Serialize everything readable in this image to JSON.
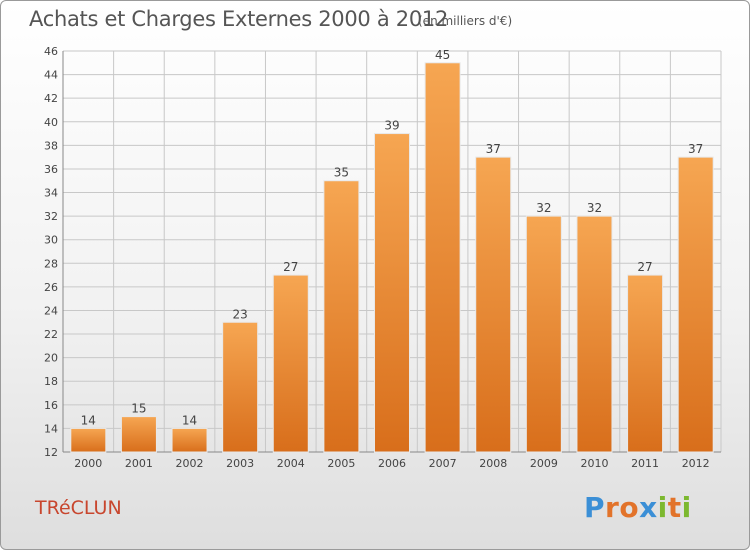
{
  "chart_data": {
    "type": "bar",
    "title": "Achats et Charges Externes 2000 à 2012",
    "subtitle": "(en milliers d'€)",
    "xlabel": "",
    "ylabel": "",
    "categories": [
      "2000",
      "2001",
      "2002",
      "2003",
      "2004",
      "2005",
      "2006",
      "2007",
      "2008",
      "2009",
      "2010",
      "2011",
      "2012"
    ],
    "values": [
      14,
      15,
      14,
      23,
      27,
      35,
      39,
      45,
      37,
      32,
      32,
      27,
      37
    ],
    "ylim": [
      12,
      46
    ],
    "yticks": [
      12,
      14,
      16,
      18,
      20,
      22,
      24,
      26,
      28,
      30,
      32,
      34,
      36,
      38,
      40,
      42,
      44,
      46
    ],
    "grid": true,
    "legend": "none",
    "colors": {
      "bar_light": "#f6a652",
      "bar_dark": "#d86e1b",
      "grid": "#c8c8c8",
      "text": "#444444"
    }
  },
  "footer": {
    "city": "TRéCLUN",
    "brand_letters": [
      {
        "ch": "P",
        "color": "#3b8fd6"
      },
      {
        "ch": "r",
        "color": "#e2732a"
      },
      {
        "ch": "o",
        "color": "#e2732a"
      },
      {
        "ch": "x",
        "color": "#3b8fd6"
      },
      {
        "ch": "i",
        "color": "#7cb82f"
      },
      {
        "ch": "t",
        "color": "#e2732a"
      },
      {
        "ch": "i",
        "color": "#7cb82f"
      }
    ]
  }
}
